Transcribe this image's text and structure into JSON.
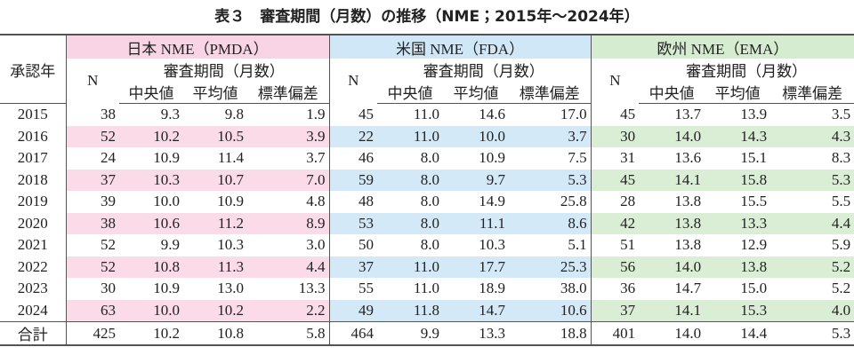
{
  "title": "表３　審査期間（月数）の推移（NME；2015年～2024年）",
  "header": {
    "year": "承認年",
    "groups": [
      {
        "name": "日本 NME（PMDA）",
        "n": "N",
        "period": "審査期間（月数）",
        "columns": [
          "中央値",
          "平均値",
          "標準偏差"
        ]
      },
      {
        "name": "米国 NME（FDA）",
        "n": "N",
        "period": "審査期間（月数）",
        "columns": [
          "中央値",
          "平均値",
          "標準偏差"
        ]
      },
      {
        "name": "欧州 NME（EMA）",
        "n": "N",
        "period": "審査期間（月数）",
        "columns": [
          "中央値",
          "平均値",
          "標準偏差"
        ]
      }
    ]
  },
  "rows": [
    {
      "year": "2015",
      "values": [
        "38",
        "9.3",
        "9.8",
        "1.9",
        "45",
        "11.0",
        "14.6",
        "17.0",
        "45",
        "13.7",
        "13.9",
        "3.5"
      ]
    },
    {
      "year": "2016",
      "values": [
        "52",
        "10.2",
        "10.5",
        "3.9",
        "22",
        "11.0",
        "10.0",
        "3.7",
        "30",
        "14.0",
        "14.3",
        "4.3"
      ]
    },
    {
      "year": "2017",
      "values": [
        "24",
        "10.9",
        "11.4",
        "3.7",
        "46",
        "8.0",
        "10.9",
        "7.5",
        "31",
        "13.6",
        "15.1",
        "8.3"
      ]
    },
    {
      "year": "2018",
      "values": [
        "37",
        "10.3",
        "10.7",
        "7.0",
        "59",
        "8.0",
        "9.7",
        "5.3",
        "45",
        "14.1",
        "15.8",
        "5.3"
      ]
    },
    {
      "year": "2019",
      "values": [
        "39",
        "10.0",
        "10.9",
        "4.8",
        "48",
        "8.0",
        "14.9",
        "25.8",
        "28",
        "13.8",
        "15.5",
        "5.5"
      ]
    },
    {
      "year": "2020",
      "values": [
        "38",
        "10.6",
        "11.2",
        "8.9",
        "53",
        "8.0",
        "11.1",
        "8.6",
        "42",
        "13.8",
        "13.3",
        "4.4"
      ]
    },
    {
      "year": "2021",
      "values": [
        "52",
        "9.9",
        "10.3",
        "3.0",
        "50",
        "8.0",
        "10.3",
        "5.1",
        "51",
        "13.8",
        "12.9",
        "5.9"
      ]
    },
    {
      "year": "2022",
      "values": [
        "52",
        "10.8",
        "11.3",
        "4.4",
        "37",
        "11.0",
        "17.7",
        "25.3",
        "56",
        "14.0",
        "13.8",
        "5.2"
      ]
    },
    {
      "year": "2023",
      "values": [
        "30",
        "10.9",
        "13.0",
        "13.3",
        "55",
        "11.0",
        "18.9",
        "38.0",
        "36",
        "14.7",
        "15.0",
        "5.2"
      ]
    },
    {
      "year": "2024",
      "values": [
        "63",
        "10.0",
        "10.2",
        "2.2",
        "49",
        "11.8",
        "14.7",
        "10.6",
        "37",
        "14.1",
        "15.3",
        "4.0"
      ]
    },
    {
      "year": "合計",
      "values": [
        "425",
        "10.2",
        "10.8",
        "5.8",
        "464",
        "9.9",
        "13.3",
        "18.8",
        "401",
        "14.0",
        "14.4",
        "5.3"
      ]
    }
  ]
}
